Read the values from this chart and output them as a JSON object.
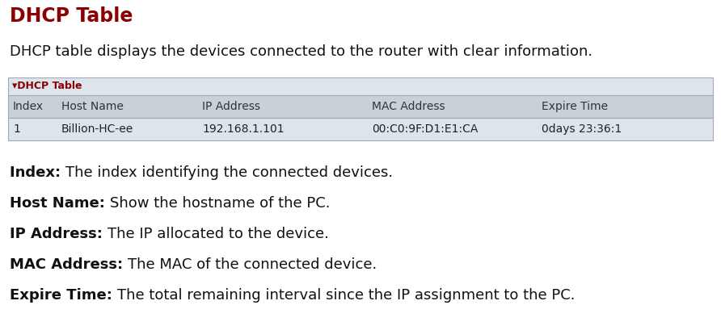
{
  "title": "DHCP Table",
  "title_color": "#8B0000",
  "intro_text": "DHCP table displays the devices connected to the router with clear information.",
  "table_label": "▾DHCP Table",
  "table_label_color": "#8B0000",
  "table_header": [
    "Index",
    "Host Name",
    "IP Address",
    "MAC Address",
    "Expire Time"
  ],
  "table_row": [
    "1",
    "Billion-HC-ee",
    "192.168.1.101",
    "00:C0:9F:D1:E1:CA",
    "0days 23:36:1"
  ],
  "header_bg": "#c8d0d8",
  "row_bg": "#dde4ec",
  "table_border_color": "#a0aab4",
  "table_top_bg": "#dde4ec",
  "bullet_points": [
    [
      "Index:",
      "The index identifying the connected devices."
    ],
    [
      "Host Name:",
      "Show the hostname of the PC."
    ],
    [
      "IP Address:",
      "The IP allocated to the device."
    ],
    [
      "MAC Address:",
      "The MAC of the connected device."
    ],
    [
      "Expire Time:",
      "The total remaining interval since the IP assignment to the PC."
    ]
  ],
  "bg_color": "#ffffff",
  "body_fontsize": 13,
  "title_fontsize": 17,
  "table_fontsize": 10
}
